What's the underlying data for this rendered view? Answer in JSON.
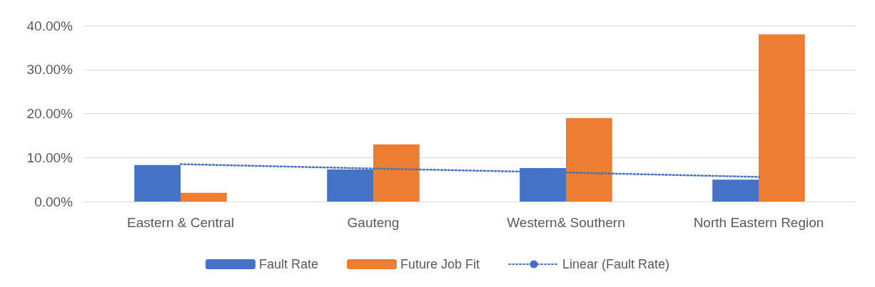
{
  "chart_data": {
    "type": "bar",
    "categories": [
      "Eastern & Central",
      "Gauteng",
      "Western& Southern",
      "North Eastern Region"
    ],
    "series": [
      {
        "name": "Fault Rate",
        "color": "#4472c4",
        "values": [
          8.3,
          7.3,
          7.6,
          5.0
        ]
      },
      {
        "name": "Future Job Fit",
        "color": "#ed7d31",
        "values": [
          2.0,
          13.0,
          19.0,
          38.0
        ]
      },
      {
        "name": "Linear (Fault Rate)",
        "type": "line",
        "color": "#4472c4",
        "line_style": "dotted",
        "marker": "none",
        "values": [
          8.5,
          7.5,
          6.6,
          5.6
        ]
      }
    ],
    "ylim": [
      0,
      40
    ],
    "yticks": [
      {
        "value": 0,
        "label": "0.00%"
      },
      {
        "value": 10,
        "label": "10.00%"
      },
      {
        "value": 20,
        "label": "20.00%"
      },
      {
        "value": 30,
        "label": "30.00%"
      },
      {
        "value": 40,
        "label": "40.00%"
      }
    ],
    "grid": "y",
    "legend": "bottom"
  }
}
